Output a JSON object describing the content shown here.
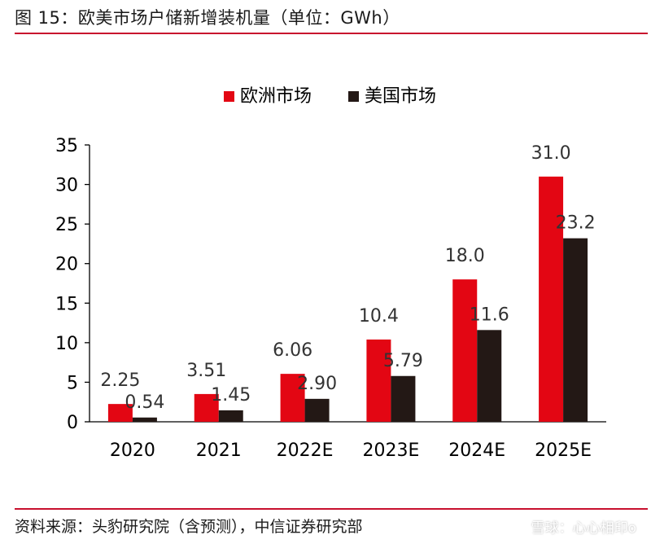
{
  "figure": {
    "title": "图 15：欧美市场户储新增装机量（单位：GWh）",
    "source": "资料来源：头豹研究院（含预测），中信证券研究部",
    "watermark": "雪球：心心相印o"
  },
  "colors": {
    "europe": "#e30613",
    "us": "#231815",
    "rule": "#c8102e"
  },
  "chart_data": {
    "type": "bar",
    "title": "",
    "xlabel": "",
    "ylabel": "",
    "ylim": [
      0,
      35
    ],
    "yticks": [
      0,
      5,
      10,
      15,
      20,
      25,
      30,
      35
    ],
    "grid": false,
    "legend_position": "top-center",
    "categories": [
      "2020",
      "2021",
      "2022E",
      "2023E",
      "2024E",
      "2025E"
    ],
    "series": [
      {
        "name": "欧洲市场",
        "values": [
          2.25,
          3.51,
          6.06,
          10.4,
          18.0,
          31.0
        ],
        "labels": [
          "2.25",
          "3.51",
          "6.06",
          "10.4",
          "18.0",
          "31.0"
        ]
      },
      {
        "name": "美国市场",
        "values": [
          0.54,
          1.45,
          2.9,
          5.79,
          11.6,
          23.2
        ],
        "labels": [
          "0.54",
          "1.45",
          "2.90",
          "5.79",
          "11.6",
          "23.2"
        ]
      }
    ]
  }
}
